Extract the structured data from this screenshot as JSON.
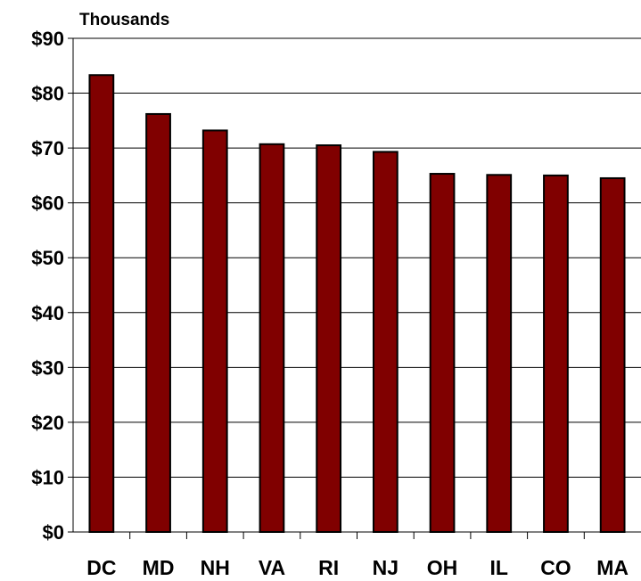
{
  "chart_data": {
    "type": "bar",
    "unit_label": "Thousands",
    "categories": [
      "DC",
      "MD",
      "NH",
      "VA",
      "RI",
      "NJ",
      "OH",
      "IL",
      "CO",
      "MA"
    ],
    "values": [
      83.3,
      76.2,
      73.2,
      70.7,
      70.5,
      69.3,
      65.3,
      65.1,
      65.0,
      64.5
    ],
    "ylim": [
      0,
      90
    ],
    "yticks": [
      0,
      10,
      20,
      30,
      40,
      50,
      60,
      70,
      80,
      90
    ],
    "ytick_labels": [
      "$0",
      "$10",
      "$20",
      "$30",
      "$40",
      "$50",
      "$60",
      "$70",
      "$80",
      "$90"
    ],
    "grid": true,
    "bar_color": "#800000",
    "title": "",
    "xlabel": "",
    "ylabel": ""
  }
}
